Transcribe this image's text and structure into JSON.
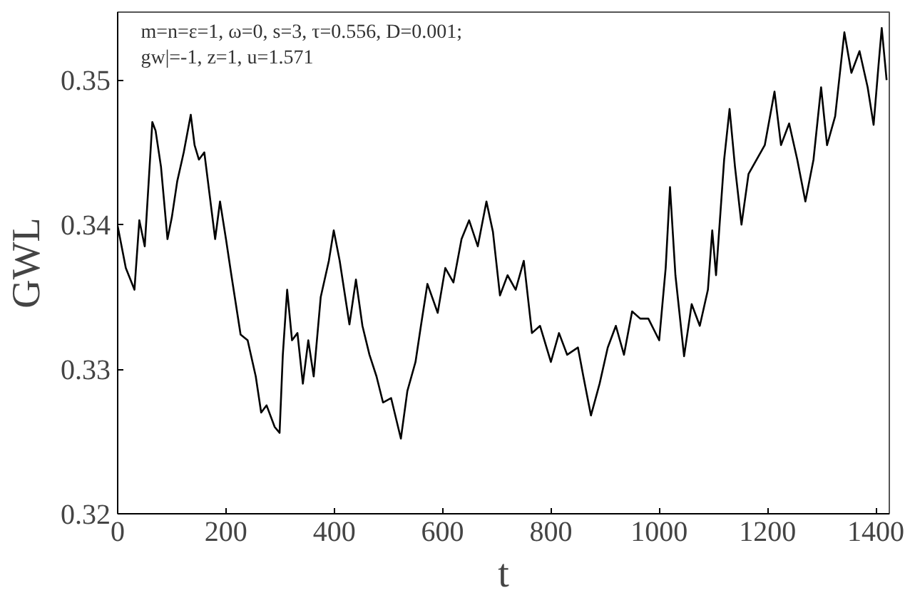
{
  "chart_data": {
    "type": "line",
    "xlabel": "t",
    "ylabel": "GWL",
    "annotations": [
      "m=n=ε=1, ω=0, s=3, τ=0.556, D=0.001;\ngw|=-1, z=1, u=1.571"
    ],
    "x": [
      0,
      15,
      31,
      40,
      50,
      64,
      70,
      80,
      92,
      100,
      110,
      122,
      135,
      142,
      150,
      160,
      170,
      180,
      189,
      200,
      210,
      227,
      240,
      255,
      265,
      275,
      290,
      299,
      305,
      313,
      322,
      332,
      342,
      352,
      362,
      375,
      390,
      399,
      410,
      428,
      440,
      452,
      465,
      478,
      490,
      505,
      523,
      535,
      550,
      560,
      572,
      591,
      605,
      620,
      635,
      649,
      665,
      681,
      693,
      706,
      720,
      735,
      750,
      765,
      780,
      800,
      815,
      830,
      850,
      860,
      874,
      890,
      905,
      920,
      935,
      950,
      965,
      980,
      1000,
      1012,
      1020,
      1030,
      1046,
      1060,
      1075,
      1090,
      1098,
      1105,
      1120,
      1130,
      1140,
      1152,
      1165,
      1180,
      1195,
      1213,
      1225,
      1240,
      1255,
      1270,
      1285,
      1299,
      1310,
      1325,
      1342,
      1355,
      1370,
      1385,
      1396,
      1405,
      1411,
      1420
    ],
    "values": [
      0.3399,
      0.337,
      0.3355,
      0.3403,
      0.3385,
      0.3471,
      0.3465,
      0.344,
      0.339,
      0.3405,
      0.343,
      0.345,
      0.3476,
      0.3455,
      0.3445,
      0.345,
      0.342,
      0.339,
      0.3416,
      0.339,
      0.3365,
      0.3324,
      0.332,
      0.3295,
      0.327,
      0.3275,
      0.326,
      0.3256,
      0.331,
      0.3355,
      0.332,
      0.3325,
      0.329,
      0.332,
      0.3295,
      0.335,
      0.3375,
      0.3396,
      0.3375,
      0.3331,
      0.3362,
      0.333,
      0.331,
      0.3295,
      0.3277,
      0.328,
      0.3252,
      0.3285,
      0.3305,
      0.333,
      0.3359,
      0.3339,
      0.337,
      0.336,
      0.339,
      0.3403,
      0.3385,
      0.3416,
      0.3395,
      0.3351,
      0.3365,
      0.3355,
      0.3375,
      0.3325,
      0.333,
      0.3305,
      0.3325,
      0.331,
      0.3315,
      0.3295,
      0.3268,
      0.329,
      0.3315,
      0.333,
      0.331,
      0.334,
      0.3335,
      0.3335,
      0.332,
      0.337,
      0.3426,
      0.3365,
      0.3309,
      0.3345,
      0.333,
      0.3355,
      0.3396,
      0.3365,
      0.3445,
      0.348,
      0.344,
      0.34,
      0.3435,
      0.3445,
      0.3455,
      0.3492,
      0.3455,
      0.347,
      0.3445,
      0.3416,
      0.3445,
      0.3495,
      0.3455,
      0.3475,
      0.3533,
      0.3505,
      0.352,
      0.3495,
      0.3469,
      0.351,
      0.3536,
      0.35
    ],
    "color": "#000000",
    "line_style": "solid",
    "marker": "none",
    "xlim": [
      0,
      1425
    ],
    "ylim": [
      0.32,
      0.3547
    ],
    "xticks": [
      0,
      200,
      400,
      600,
      800,
      1000,
      1200,
      1400
    ],
    "yticks": [
      0.32,
      0.33,
      0.34,
      0.35
    ],
    "grid": false
  }
}
